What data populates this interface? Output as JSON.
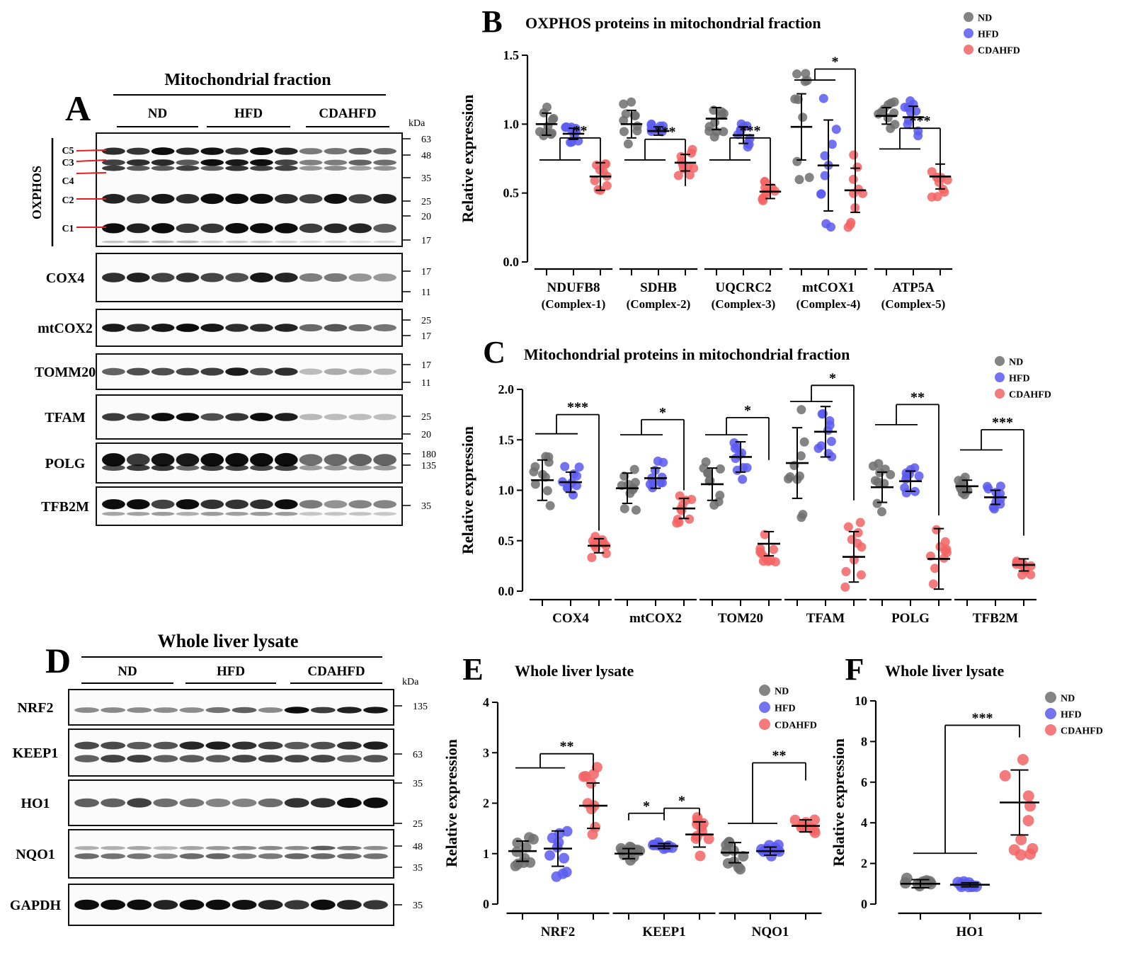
{
  "colors": {
    "ND": "#6f6f6f",
    "HFD": "#5b5bf0",
    "CDAHFD": "#f26464",
    "mean_line": "#000000"
  },
  "legend_labels": [
    "ND",
    "HFD",
    "CDAHFD"
  ],
  "panel_letters": {
    "A": "A",
    "B": "B",
    "C": "C",
    "D": "D",
    "E": "E",
    "F": "F"
  },
  "blotA": {
    "title": "Mitochondrial fraction",
    "groups": [
      "ND",
      "HFD",
      "CDAHFD"
    ],
    "kda": "kDa",
    "oxphos_label": "OXPHOS",
    "complex_labels": [
      "C5",
      "C3",
      "C4",
      "C2",
      "C1"
    ],
    "oxphos_markers": [
      "63",
      "48",
      "35",
      "25",
      "20",
      "17"
    ],
    "blots": [
      {
        "name": "COX4",
        "markers": [
          "17",
          "11"
        ]
      },
      {
        "name": "mtCOX2",
        "markers": [
          "25",
          "17"
        ]
      },
      {
        "name": "TOMM20",
        "markers": [
          "17",
          "11"
        ]
      },
      {
        "name": "TFAM",
        "markers": [
          "25",
          "20"
        ]
      },
      {
        "name": "POLG",
        "markers": [
          "180",
          "135"
        ]
      },
      {
        "name": "TFB2M",
        "markers": [
          "35"
        ]
      }
    ]
  },
  "blotD": {
    "title": "Whole liver lysate",
    "groups": [
      "ND",
      "HFD",
      "CDAHFD"
    ],
    "kda": "kDa",
    "blots": [
      {
        "name": "NRF2",
        "markers": [
          "135"
        ]
      },
      {
        "name": "KEEP1",
        "markers": [
          "63"
        ]
      },
      {
        "name": "HO1",
        "markers": [
          "35",
          "25"
        ]
      },
      {
        "name": "NQO1",
        "markers": [
          "48",
          "35"
        ]
      },
      {
        "name": "GAPDH",
        "markers": [
          "35"
        ]
      }
    ]
  },
  "chart_data": [
    {
      "panel": "B",
      "type": "scatter",
      "title": "OXPHOS proteins in mitochondrial fraction",
      "ylabel": "Relative expression",
      "ylim": [
        0,
        1.5
      ],
      "yticks": [
        "0.0",
        "0.5",
        "1.0",
        "1.5"
      ],
      "categories": [
        "NDUFB8",
        "SDHB",
        "UQCRC2",
        "mtCOX1",
        "ATP5A"
      ],
      "subcategories": [
        "(Complex-1)",
        "(Complex-2)",
        "(Complex-3)",
        "(Complex-4)",
        "(Complex-5)"
      ],
      "significance": [
        "**",
        "***",
        "***",
        "*",
        "***"
      ],
      "series": [
        {
          "name": "ND",
          "means": [
            1.0,
            1.0,
            1.04,
            0.98,
            1.06
          ],
          "sd": [
            0.08,
            0.1,
            0.08,
            0.24,
            0.06
          ]
        },
        {
          "name": "HFD",
          "means": [
            0.93,
            0.95,
            0.92,
            0.7,
            1.05
          ],
          "sd": [
            0.04,
            0.03,
            0.06,
            0.33,
            0.08
          ]
        },
        {
          "name": "CDAHFD",
          "means": [
            0.62,
            0.72,
            0.51,
            0.52,
            0.62
          ],
          "sd": [
            0.1,
            0.06,
            0.05,
            0.16,
            0.09
          ]
        }
      ]
    },
    {
      "panel": "C",
      "type": "scatter",
      "title": "Mitochondrial proteins in mitochondrial fraction",
      "ylabel": "Relative expression",
      "ylim": [
        0,
        2.0
      ],
      "yticks": [
        "0.0",
        "0.5",
        "1.0",
        "1.5",
        "2.0"
      ],
      "categories": [
        "COX4",
        "mtCOX2",
        "TOM20",
        "TFAM",
        "POLG",
        "TFB2M"
      ],
      "significance": [
        "***",
        "*",
        "*",
        "*",
        "**",
        "***"
      ],
      "series": [
        {
          "name": "ND",
          "means": [
            1.1,
            1.02,
            1.06,
            1.27,
            1.03,
            1.04
          ],
          "sd": [
            0.2,
            0.15,
            0.16,
            0.35,
            0.15,
            0.06
          ]
        },
        {
          "name": "HFD",
          "means": [
            1.08,
            1.12,
            1.33,
            1.58,
            1.09,
            0.93
          ],
          "sd": [
            0.1,
            0.1,
            0.15,
            0.25,
            0.1,
            0.07
          ]
        },
        {
          "name": "CDAHFD",
          "means": [
            0.45,
            0.82,
            0.47,
            0.34,
            0.32,
            0.26
          ],
          "sd": [
            0.07,
            0.1,
            0.12,
            0.25,
            0.3,
            0.06
          ]
        }
      ]
    },
    {
      "panel": "E",
      "type": "scatter",
      "title": "Whole liver lysate",
      "ylabel": "Relative expression",
      "ylim": [
        0,
        4
      ],
      "yticks": [
        "0",
        "1",
        "2",
        "3",
        "4"
      ],
      "categories": [
        "NRF2",
        "KEEP1",
        "NQO1"
      ],
      "significance": [
        {
          "text": "**"
        },
        {
          "text": "*",
          "pair": "ND-HFD"
        },
        {
          "text": "*",
          "pair": "HFD-CDAHFD"
        },
        {
          "text": "**"
        }
      ],
      "series": [
        {
          "name": "ND",
          "means": [
            1.05,
            1.0,
            1.02
          ],
          "sd": [
            0.2,
            0.1,
            0.2
          ]
        },
        {
          "name": "HFD",
          "means": [
            1.1,
            1.15,
            1.05
          ],
          "sd": [
            0.35,
            0.05,
            0.08
          ]
        },
        {
          "name": "CDAHFD",
          "means": [
            1.95,
            1.38,
            1.55
          ],
          "sd": [
            0.45,
            0.25,
            0.12
          ]
        }
      ]
    },
    {
      "panel": "F",
      "type": "scatter",
      "title": "Whole liver lysate",
      "ylabel": "Relative expression",
      "ylim": [
        0,
        10
      ],
      "yticks": [
        "0",
        "2",
        "4",
        "6",
        "8",
        "10"
      ],
      "categories": [
        "HO1"
      ],
      "significance": [
        "***"
      ],
      "series": [
        {
          "name": "ND",
          "means": [
            1.0
          ],
          "sd": [
            0.2
          ]
        },
        {
          "name": "HFD",
          "means": [
            0.95
          ],
          "sd": [
            0.1
          ]
        },
        {
          "name": "CDAHFD",
          "means": [
            5.0
          ],
          "sd": [
            1.6
          ]
        }
      ]
    }
  ]
}
